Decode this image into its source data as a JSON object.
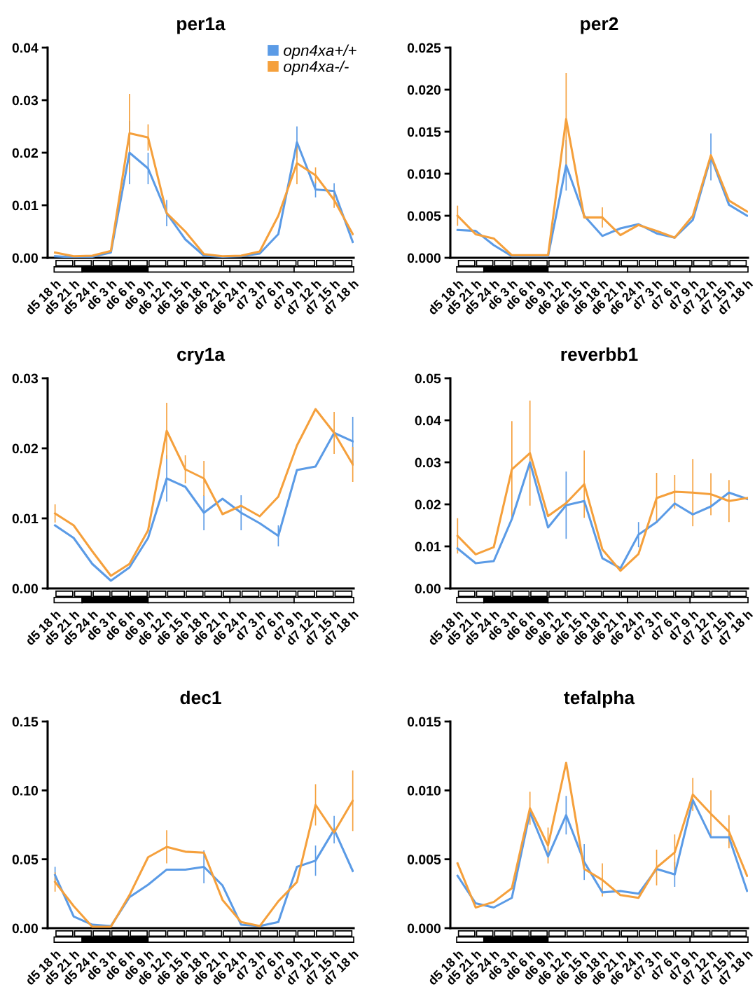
{
  "chart_data": [
    {
      "type": "line",
      "title": "per1a",
      "categories": [
        "d5 18 h",
        "d5 21 h",
        "d5 24 h",
        "d6 3 h",
        "d6 6 h",
        "d6 9 h",
        "d6 12 h",
        "d6 15 h",
        "d6 18 h",
        "d6 21 h",
        "d6 24 h",
        "d7 3 h",
        "d7 6 h",
        "d7 9 h",
        "d7 12 h",
        "d7 15 h",
        "d7 18 h"
      ],
      "ylim": [
        0,
        0.04
      ],
      "yticks": [
        {
          "value": 0,
          "label": "0.00"
        },
        {
          "value": 0.01,
          "label": "0.01"
        },
        {
          "value": 0.02,
          "label": "0.02"
        },
        {
          "value": 0.03,
          "label": "0.03"
        },
        {
          "value": 0.04,
          "label": "0.04"
        }
      ],
      "legend": "top right",
      "grid": false,
      "series": [
        {
          "name": "opn4xa+/+",
          "color": "#5b9be6",
          "values": [
            0.0003,
            0.0001,
            0.0002,
            0.001,
            0.02,
            0.017,
            0.0085,
            0.0035,
            0.0004,
            0.0002,
            0.0003,
            0.0008,
            0.0045,
            0.022,
            0.013,
            0.0127,
            0.003
          ],
          "errors": [
            null,
            null,
            null,
            null,
            0.006,
            0.003,
            0.0025,
            null,
            null,
            null,
            null,
            null,
            null,
            0.003,
            0.0015,
            0.0015,
            null
          ]
        },
        {
          "name": "opn4xa-/-",
          "color": "#f5a03c",
          "values": [
            0.001,
            0.0003,
            0.0004,
            0.0013,
            0.0237,
            0.0229,
            0.0085,
            0.005,
            0.0007,
            0.0003,
            0.0004,
            0.0012,
            0.008,
            0.018,
            0.0157,
            0.011,
            0.0045
          ],
          "errors": [
            null,
            null,
            null,
            null,
            0.0075,
            0.0025,
            null,
            null,
            null,
            null,
            null,
            null,
            null,
            0.004,
            0.0015,
            0.0015,
            null
          ]
        }
      ]
    },
    {
      "type": "line",
      "title": "per2",
      "categories": [
        "d5 18 h",
        "d5 21 h",
        "d5 24 h",
        "d6 3 h",
        "d6 6 h",
        "d6 9 h",
        "d6 12 h",
        "d6 15 h",
        "d6 18 h",
        "d6 21 h",
        "d6 24 h",
        "d7 3 h",
        "d7 6 h",
        "d7 9 h",
        "d7 12 h",
        "d7 15 h",
        "d7 18 h"
      ],
      "ylim": [
        0,
        0.025
      ],
      "yticks": [
        {
          "value": 0,
          "label": "0.000"
        },
        {
          "value": 0.005,
          "label": "0.005"
        },
        {
          "value": 0.01,
          "label": "0.010"
        },
        {
          "value": 0.015,
          "label": "0.015"
        },
        {
          "value": 0.02,
          "label": "0.020"
        },
        {
          "value": 0.025,
          "label": "0.025"
        }
      ],
      "grid": false,
      "series": [
        {
          "color": "#5b9be6",
          "values": [
            0.0033,
            0.0032,
            0.0015,
            0.0002,
            0.0002,
            0.0002,
            0.011,
            0.005,
            0.0026,
            0.0035,
            0.004,
            0.0029,
            0.0024,
            0.0045,
            0.012,
            0.0063,
            0.005
          ],
          "errors": [
            null,
            null,
            null,
            null,
            null,
            null,
            0.003,
            null,
            null,
            null,
            null,
            null,
            null,
            null,
            0.0028,
            null,
            null
          ]
        },
        {
          "color": "#f5a03c",
          "values": [
            0.005,
            0.0028,
            0.0023,
            0.0003,
            0.0003,
            0.0003,
            0.0165,
            0.0048,
            0.0048,
            0.0027,
            0.0039,
            0.0032,
            0.0024,
            0.005,
            0.0122,
            0.0068,
            0.0055
          ],
          "errors": [
            0.0012,
            null,
            null,
            null,
            null,
            null,
            0.0055,
            null,
            0.0012,
            null,
            null,
            null,
            null,
            null,
            null,
            null,
            null
          ]
        }
      ]
    },
    {
      "type": "line",
      "title": "cry1a",
      "categories": [
        "d5 18 h",
        "d5 21 h",
        "d5 24 h",
        "d6 3 h",
        "d6 6 h",
        "d6 9 h",
        "d6 12 h",
        "d6 15 h",
        "d6 18 h",
        "d6 21 h",
        "d6 24 h",
        "d7 3 h",
        "d7 6 h",
        "d7 9 h",
        "d7 12 h",
        "d7 15 h",
        "d7 18 h"
      ],
      "ylim": [
        0,
        0.03
      ],
      "yticks": [
        {
          "value": 0,
          "label": "0.00"
        },
        {
          "value": 0.01,
          "label": "0.01"
        },
        {
          "value": 0.02,
          "label": "0.02"
        },
        {
          "value": 0.03,
          "label": "0.03"
        }
      ],
      "grid": false,
      "series": [
        {
          "color": "#5b9be6",
          "values": [
            0.009,
            0.0072,
            0.0035,
            0.0011,
            0.003,
            0.0072,
            0.0157,
            0.0145,
            0.0108,
            0.0128,
            0.0108,
            0.0093,
            0.0075,
            0.0169,
            0.0174,
            0.0222,
            0.021
          ],
          "errors": [
            null,
            null,
            null,
            null,
            null,
            null,
            0.0033,
            null,
            0.0025,
            null,
            0.0025,
            null,
            0.0015,
            null,
            null,
            null,
            0.0035
          ]
        },
        {
          "color": "#f5a03c",
          "values": [
            0.0107,
            0.009,
            0.0053,
            0.0018,
            0.0035,
            0.0083,
            0.0225,
            0.017,
            0.0157,
            0.0106,
            0.0118,
            0.0103,
            0.0131,
            0.0204,
            0.0256,
            0.0222,
            0.0177
          ],
          "errors": [
            0.0013,
            null,
            null,
            null,
            null,
            null,
            0.004,
            0.002,
            0.0025,
            null,
            null,
            null,
            null,
            null,
            null,
            0.003,
            0.0025
          ]
        }
      ]
    },
    {
      "type": "line",
      "title": "reverbb1",
      "categories": [
        "d5 18 h",
        "d5 21 h",
        "d5 24 h",
        "d6 3 h",
        "d6 6 h",
        "d6 9 h",
        "d6 12 h",
        "d6 15 h",
        "d6 18 h",
        "d6 21 h",
        "d6 24 h",
        "d7 3 h",
        "d7 6 h",
        "d7 9 h",
        "d7 12 h",
        "d7 15 h",
        "d7 18 h"
      ],
      "ylim": [
        0,
        0.05
      ],
      "yticks": [
        {
          "value": 0,
          "label": "0.00"
        },
        {
          "value": 0.01,
          "label": "0.01"
        },
        {
          "value": 0.02,
          "label": "0.02"
        },
        {
          "value": 0.03,
          "label": "0.03"
        },
        {
          "value": 0.04,
          "label": "0.04"
        },
        {
          "value": 0.05,
          "label": "0.05"
        }
      ],
      "grid": false,
      "series": [
        {
          "color": "#5b9be6",
          "values": [
            0.0095,
            0.006,
            0.0065,
            0.0165,
            0.03,
            0.0145,
            0.0198,
            0.0208,
            0.0072,
            0.0048,
            0.0128,
            0.0158,
            0.0202,
            0.0176,
            0.0195,
            0.0228,
            0.0213
          ],
          "errors": [
            null,
            null,
            null,
            null,
            null,
            null,
            0.008,
            null,
            null,
            null,
            0.003,
            null,
            null,
            null,
            null,
            null,
            null
          ]
        },
        {
          "color": "#f5a03c",
          "values": [
            0.0125,
            0.0081,
            0.0098,
            0.0283,
            0.0322,
            0.0172,
            0.0203,
            0.0248,
            0.0093,
            0.0042,
            0.0082,
            0.0215,
            0.023,
            0.0228,
            0.0224,
            0.0208,
            0.0215
          ],
          "errors": [
            0.0042,
            null,
            null,
            0.0115,
            0.0125,
            null,
            null,
            0.008,
            null,
            null,
            null,
            0.006,
            0.004,
            0.008,
            0.005,
            0.005,
            null
          ]
        }
      ]
    },
    {
      "type": "line",
      "title": "dec1",
      "categories": [
        "d5 18 h",
        "d5 21 h",
        "d5 24 h",
        "d6 3 h",
        "d6 6 h",
        "d6 9 h",
        "d6 12 h",
        "d6 15 h",
        "d6 18 h",
        "d6 21 h",
        "d6 24 h",
        "d7 3 h",
        "d7 6 h",
        "d7 9 h",
        "d7 12 h",
        "d7 15 h",
        "d7 18 h"
      ],
      "ylim": [
        0,
        0.15
      ],
      "yticks": [
        {
          "value": 0,
          "label": "0.00"
        },
        {
          "value": 0.05,
          "label": "0.05"
        },
        {
          "value": 0.1,
          "label": "0.10"
        },
        {
          "value": 0.15,
          "label": "0.15"
        }
      ],
      "grid": false,
      "series": [
        {
          "color": "#5b9be6",
          "values": [
            0.0385,
            0.0085,
            0.0025,
            0.0015,
            0.0225,
            0.0315,
            0.0425,
            0.0425,
            0.0445,
            0.031,
            0.0025,
            0.0015,
            0.0045,
            0.0445,
            0.049,
            0.0715,
            0.0415
          ],
          "errors": [
            0.006,
            null,
            null,
            null,
            null,
            null,
            null,
            null,
            0.012,
            null,
            null,
            null,
            null,
            null,
            0.011,
            0.01,
            null
          ]
        },
        {
          "color": "#f5a03c",
          "values": [
            0.0335,
            0.016,
            0.001,
            0.001,
            0.024,
            0.0515,
            0.059,
            0.0555,
            0.0548,
            0.0205,
            0.0045,
            0.0015,
            0.0195,
            0.0335,
            0.0895,
            0.0695,
            0.0925
          ],
          "errors": [
            0.007,
            null,
            null,
            null,
            null,
            null,
            0.012,
            null,
            null,
            null,
            null,
            null,
            null,
            null,
            0.015,
            null,
            0.022
          ]
        }
      ]
    },
    {
      "type": "line",
      "title": "tefalpha",
      "categories": [
        "d5 18 h",
        "d5 21 h",
        "d5 24 h",
        "d6 3 h",
        "d6 6 h",
        "d6 9 h",
        "d6 12 h",
        "d6 15 h",
        "d6 18 h",
        "d6 21 h",
        "d6 24 h",
        "d7 3 h",
        "d7 6 h",
        "d7 9 h",
        "d7 12 h",
        "d7 15 h",
        "d7 18 h"
      ],
      "ylim": [
        0,
        0.015
      ],
      "yticks": [
        {
          "value": 0,
          "label": "0.000"
        },
        {
          "value": 0.005,
          "label": "0.005"
        },
        {
          "value": 0.01,
          "label": "0.010"
        },
        {
          "value": 0.015,
          "label": "0.015"
        }
      ],
      "grid": false,
      "series": [
        {
          "color": "#5b9be6",
          "values": [
            0.0038,
            0.0018,
            0.0015,
            0.0022,
            0.0084,
            0.0052,
            0.0082,
            0.0048,
            0.0026,
            0.0027,
            0.0025,
            0.0043,
            0.0039,
            0.0093,
            0.0066,
            0.0066,
            0.0027
          ],
          "errors": [
            null,
            null,
            null,
            null,
            null,
            null,
            0.0014,
            0.0013,
            null,
            null,
            null,
            null,
            0.0009,
            null,
            null,
            null,
            null
          ]
        },
        {
          "color": "#f5a03c",
          "values": [
            0.0047,
            0.0015,
            0.0019,
            0.0029,
            0.0087,
            0.006,
            0.012,
            0.0043,
            0.0035,
            0.0024,
            0.0022,
            0.0044,
            0.0055,
            0.0097,
            0.0083,
            0.007,
            0.0038
          ],
          "errors": [
            null,
            null,
            null,
            null,
            0.0012,
            0.0013,
            null,
            null,
            0.0012,
            null,
            null,
            0.0013,
            0.0013,
            0.0012,
            0.0017,
            0.0012,
            null
          ]
        }
      ]
    }
  ]
}
